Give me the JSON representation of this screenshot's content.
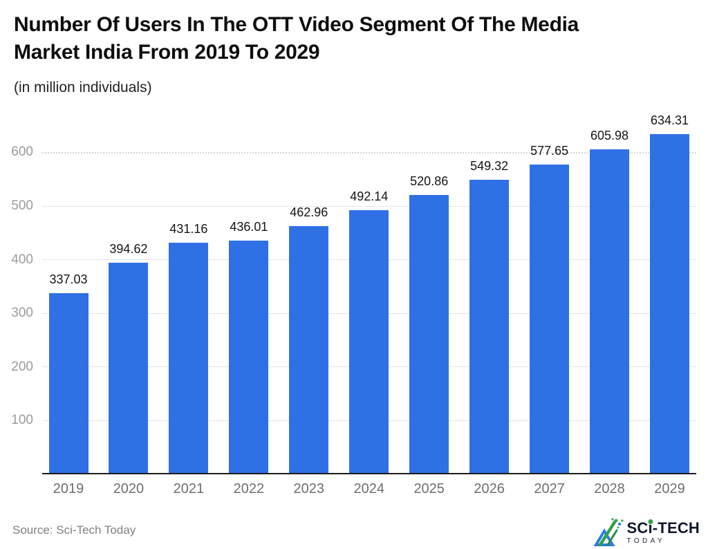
{
  "header": {
    "title": "Number Of Users In The OTT Video Segment Of The Media Market India From 2019 To 2029",
    "title_lines": [
      "Number Of Users In The OTT Video Segment Of The Media",
      "Market India From 2019 To 2029"
    ],
    "subtitle": "(in million individuals)"
  },
  "chart_data": {
    "type": "bar",
    "title": "Number Of Users In The OTT Video Segment Of The Media Market India From 2019 To 2029",
    "subtitle": "(in million individuals)",
    "categories": [
      "2019",
      "2020",
      "2021",
      "2022",
      "2023",
      "2024",
      "2025",
      "2026",
      "2027",
      "2028",
      "2029"
    ],
    "values": [
      337.03,
      394.62,
      431.16,
      436.01,
      462.96,
      492.14,
      520.86,
      549.32,
      577.65,
      605.98,
      634.31
    ],
    "xlabel": "",
    "ylabel": "",
    "ylim": [
      0,
      680
    ],
    "yticks": [
      100,
      200,
      300,
      400,
      500,
      600
    ],
    "grid": true,
    "legend": false,
    "value_labels": true,
    "bar_color": "#2f70e5",
    "top_gridline_style": "dotted",
    "top_gridline_value": 600
  },
  "footer": {
    "source": "Source: Sci-Tech Today",
    "brand": {
      "part1": "SC",
      "part2": "i",
      "part3": "-TECH",
      "bottom": "TODAY"
    }
  },
  "colors": {
    "bar": "#2f70e5",
    "axis_line": "#1c1c1c",
    "gridline": "#e5e5e9",
    "ytick_text": "#9b9b9b",
    "xtick_text": "#6e6e6e",
    "value_text": "#141414",
    "title_text": "#0d0d0d",
    "source_text": "#808080",
    "brand_navy": "#10182e",
    "brand_green": "#34a04c",
    "brand_blue": "#2a7de1"
  }
}
